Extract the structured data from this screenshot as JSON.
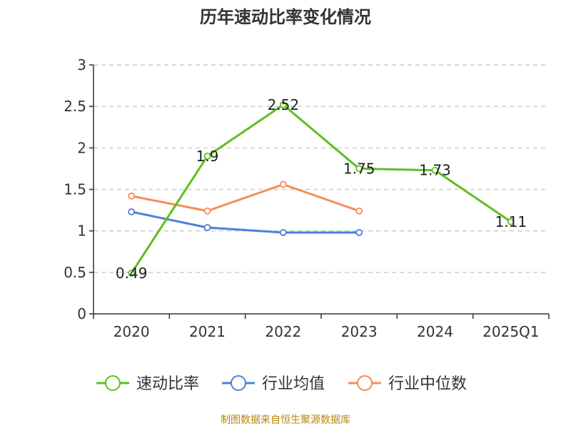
{
  "chart_data": {
    "type": "line",
    "title": "历年速动比率变化情况",
    "categories": [
      "2020",
      "2021",
      "2022",
      "2023",
      "2024",
      "2025Q1"
    ],
    "ylim": [
      0,
      3
    ],
    "yticks": [
      "0",
      "0.5",
      "1",
      "1.5",
      "2",
      "2.5",
      "3"
    ],
    "grid": true,
    "legend_position": "bottom",
    "series": [
      {
        "name": "速动比率",
        "color": "#5cc020",
        "values": [
          0.49,
          1.9,
          2.52,
          1.75,
          1.73,
          1.11
        ],
        "labels": [
          "0.49",
          "1.9",
          "2.52",
          "1.75",
          "1.73",
          "1.11"
        ]
      },
      {
        "name": "行业均值",
        "color": "#4d7fdb",
        "values": [
          1.23,
          1.04,
          0.98,
          0.98,
          null,
          null
        ]
      },
      {
        "name": "行业中位数",
        "color": "#f58c55",
        "values": [
          1.42,
          1.24,
          1.56,
          1.24,
          null,
          null
        ]
      }
    ]
  },
  "source": "制图数据来自恒生聚源数据库"
}
